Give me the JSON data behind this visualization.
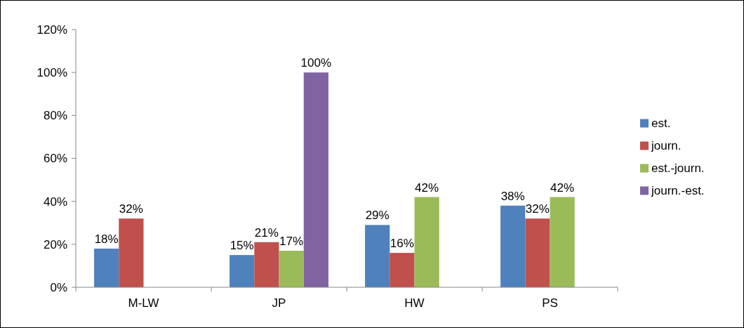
{
  "chart_data": {
    "type": "bar",
    "categories": [
      "M-LW",
      "JP",
      "HW",
      "PS"
    ],
    "series": [
      {
        "name": "est.",
        "color": "#4f81bd",
        "values": [
          18,
          15,
          29,
          38
        ],
        "value_labels": [
          "18%",
          "15%",
          "29%",
          "38%"
        ]
      },
      {
        "name": "journ.",
        "color": "#c0504d",
        "values": [
          32,
          21,
          16,
          32
        ],
        "value_labels": [
          "32%",
          "21%",
          "16%",
          "32%"
        ]
      },
      {
        "name": "est.-journ.",
        "color": "#9bbb59",
        "values": [
          null,
          17,
          42,
          42
        ],
        "value_labels": [
          null,
          "17%",
          "42%",
          "42%"
        ]
      },
      {
        "name": "journ.-est.",
        "color": "#8064a2",
        "values": [
          null,
          100,
          null,
          null
        ],
        "value_labels": [
          null,
          "100%",
          null,
          null
        ]
      }
    ],
    "ylim": [
      0,
      120
    ],
    "yticks": [
      {
        "value": 0,
        "label": "0%"
      },
      {
        "value": 20,
        "label": "20%"
      },
      {
        "value": 40,
        "label": "40%"
      },
      {
        "value": 60,
        "label": "60%"
      },
      {
        "value": 80,
        "label": "80%"
      },
      {
        "value": 100,
        "label": "100%"
      },
      {
        "value": 120,
        "label": "120%"
      }
    ],
    "grid": false,
    "legend": "right"
  }
}
